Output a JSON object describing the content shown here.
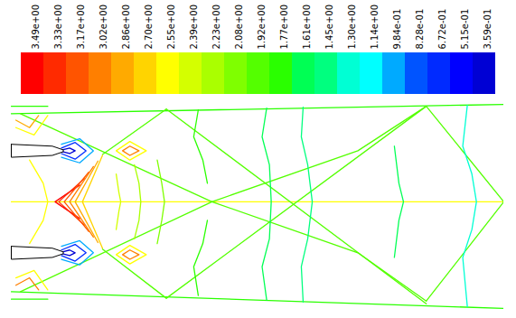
{
  "chart_data": {
    "type": "contour",
    "xlim": [
      0,
      540
    ],
    "ylim": [
      -118,
      108
    ],
    "tick_labels": false,
    "colorbar": {
      "ticks": [
        {
          "value": 3.49,
          "label": "3.49e+00"
        },
        {
          "value": 3.33,
          "label": "3.33e+00"
        },
        {
          "value": 3.17,
          "label": "3.17e+00"
        },
        {
          "value": 3.02,
          "label": "3.02e+00"
        },
        {
          "value": 2.86,
          "label": "2.86e+00"
        },
        {
          "value": 2.7,
          "label": "2.70e+00"
        },
        {
          "value": 2.55,
          "label": "2.55e+00"
        },
        {
          "value": 2.39,
          "label": "2.39e+00"
        },
        {
          "value": 2.23,
          "label": "2.23e+00"
        },
        {
          "value": 2.08,
          "label": "2.08e+00"
        },
        {
          "value": 1.92,
          "label": "1.92e+00"
        },
        {
          "value": 1.77,
          "label": "1.77e+00"
        },
        {
          "value": 1.61,
          "label": "1.61e+00"
        },
        {
          "value": 1.45,
          "label": "1.45e+00"
        },
        {
          "value": 1.3,
          "label": "1.30e+00"
        },
        {
          "value": 1.14,
          "label": "1.14e+00"
        },
        {
          "value": 0.984,
          "label": "9.84e-01"
        },
        {
          "value": 0.828,
          "label": "8.28e-01"
        },
        {
          "value": 0.672,
          "label": "6.72e-01"
        },
        {
          "value": 0.515,
          "label": "5.15e-01"
        },
        {
          "value": 0.359,
          "label": "3.59e-01"
        }
      ],
      "colors": [
        "#ff0000",
        "#ff2a00",
        "#ff5400",
        "#ff7f00",
        "#ffaa00",
        "#ffd400",
        "#ffff00",
        "#d4ff00",
        "#aaff00",
        "#7fff00",
        "#54ff00",
        "#2aff00",
        "#00ff54",
        "#00ff7f",
        "#00ffd4",
        "#00ffff",
        "#00aaff",
        "#0054ff",
        "#002aff",
        "#0000ff",
        "#0000d4"
      ]
    },
    "contours": [
      {
        "level": 1.77,
        "points": [
          [
            0,
            95
          ],
          [
            540,
            105
          ]
        ]
      },
      {
        "level": 1.77,
        "points": [
          [
            0,
            -97
          ],
          [
            540,
            -115
          ]
        ]
      },
      {
        "level": 1.77,
        "points": [
          [
            0,
            103
          ],
          [
            40,
            103
          ]
        ]
      },
      {
        "level": 1.77,
        "points": [
          [
            0,
            -105
          ],
          [
            40,
            -105
          ]
        ]
      },
      {
        "level": 2.55,
        "points": [
          [
            0,
            0
          ],
          [
            540,
            0
          ]
        ]
      },
      {
        "level": 1.92,
        "points": [
          [
            10,
            95
          ],
          [
            220,
            0
          ]
        ]
      },
      {
        "level": 1.92,
        "points": [
          [
            10,
            -97
          ],
          [
            220,
            0
          ]
        ]
      },
      {
        "level": 1.92,
        "points": [
          [
            100,
            51
          ],
          [
            170,
            100
          ]
        ]
      },
      {
        "level": 1.92,
        "points": [
          [
            100,
            -51
          ],
          [
            170,
            -104
          ]
        ]
      },
      {
        "level": 1.92,
        "points": [
          [
            220,
            0
          ],
          [
            380,
            55
          ],
          [
            455,
            103
          ]
        ]
      },
      {
        "level": 1.92,
        "points": [
          [
            220,
            0
          ],
          [
            380,
            -55
          ],
          [
            455,
            -107
          ]
        ]
      },
      {
        "level": 1.92,
        "points": [
          [
            170,
            100
          ],
          [
            455,
            -110
          ]
        ]
      },
      {
        "level": 1.92,
        "points": [
          [
            170,
            -104
          ],
          [
            455,
            103
          ]
        ]
      },
      {
        "level": 1.92,
        "points": [
          [
            455,
            103
          ],
          [
            540,
            0
          ]
        ]
      },
      {
        "level": 1.92,
        "points": [
          [
            455,
            -107
          ],
          [
            540,
            0
          ]
        ]
      },
      {
        "level": 1.77,
        "points": [
          [
            205,
            99
          ],
          [
            200,
            70
          ],
          [
            210,
            45
          ],
          [
            215,
            20
          ]
        ]
      },
      {
        "level": 1.77,
        "points": [
          [
            205,
            -101
          ],
          [
            200,
            -70
          ],
          [
            210,
            -45
          ],
          [
            215,
            -20
          ]
        ]
      },
      {
        "level": 1.61,
        "points": [
          [
            280,
            101
          ],
          [
            275,
            70
          ],
          [
            283,
            40
          ],
          [
            285,
            0
          ],
          [
            283,
            -40
          ],
          [
            275,
            -70
          ],
          [
            280,
            -106
          ]
        ]
      },
      {
        "level": 1.45,
        "points": [
          [
            320,
            102
          ],
          [
            318,
            70
          ],
          [
            325,
            40
          ],
          [
            330,
            0
          ],
          [
            325,
            -40
          ],
          [
            318,
            -70
          ],
          [
            320,
            -108
          ]
        ]
      },
      {
        "level": 1.61,
        "points": [
          [
            420,
            60
          ],
          [
            425,
            20
          ],
          [
            430,
            0
          ],
          [
            425,
            -20
          ],
          [
            420,
            -60
          ]
        ]
      },
      {
        "level": 1.3,
        "points": [
          [
            500,
            104
          ],
          [
            495,
            60
          ],
          [
            505,
            30
          ],
          [
            510,
            0
          ],
          [
            505,
            -30
          ],
          [
            495,
            -60
          ],
          [
            500,
            -113
          ]
        ]
      },
      {
        "level": 2.08,
        "points": [
          [
            160,
            45
          ],
          [
            165,
            20
          ],
          [
            168,
            0
          ],
          [
            165,
            -20
          ],
          [
            160,
            -45
          ]
        ]
      },
      {
        "level": 2.23,
        "points": [
          [
            135,
            40
          ],
          [
            140,
            20
          ],
          [
            142,
            0
          ],
          [
            140,
            -20
          ],
          [
            135,
            -40
          ]
        ]
      },
      {
        "level": 2.39,
        "points": [
          [
            115,
            30
          ],
          [
            118,
            10
          ],
          [
            120,
            0
          ],
          [
            118,
            -10
          ],
          [
            115,
            -30
          ]
        ]
      },
      {
        "level": 3.49,
        "points": [
          [
            75,
            18
          ],
          [
            48,
            0
          ],
          [
            75,
            -18
          ]
        ]
      },
      {
        "level": 3.33,
        "points": [
          [
            80,
            25
          ],
          [
            52,
            0
          ],
          [
            80,
            -25
          ]
        ]
      },
      {
        "level": 3.17,
        "points": [
          [
            85,
            32
          ],
          [
            58,
            0
          ],
          [
            85,
            -32
          ]
        ]
      },
      {
        "level": 3.02,
        "points": [
          [
            90,
            38
          ],
          [
            64,
            0
          ],
          [
            90,
            -38
          ]
        ]
      },
      {
        "level": 2.86,
        "points": [
          [
            95,
            44
          ],
          [
            70,
            0
          ],
          [
            95,
            -44
          ]
        ]
      },
      {
        "level": 2.7,
        "points": [
          [
            100,
            50
          ],
          [
            78,
            0
          ],
          [
            100,
            -50
          ]
        ]
      },
      {
        "level": 2.55,
        "points": [
          [
            20,
            45
          ],
          [
            35,
            20
          ],
          [
            40,
            0
          ],
          [
            35,
            -20
          ],
          [
            20,
            -45
          ]
        ]
      },
      {
        "level": 0.984,
        "points": [
          [
            55,
            62
          ],
          [
            75,
            68
          ],
          [
            90,
            55
          ],
          [
            75,
            42
          ],
          [
            55,
            48
          ]
        ]
      },
      {
        "level": 0.672,
        "points": [
          [
            55,
            58
          ],
          [
            70,
            64
          ],
          [
            82,
            55
          ],
          [
            70,
            46
          ],
          [
            55,
            52
          ]
        ]
      },
      {
        "level": 0.359,
        "points": [
          [
            56,
            56
          ],
          [
            64,
            58
          ],
          [
            70,
            55
          ],
          [
            64,
            52
          ],
          [
            56,
            54
          ]
        ]
      },
      {
        "level": 0.984,
        "points": [
          [
            55,
            -48
          ],
          [
            75,
            -42
          ],
          [
            90,
            -55
          ],
          [
            75,
            -68
          ],
          [
            55,
            -62
          ]
        ]
      },
      {
        "level": 0.672,
        "points": [
          [
            55,
            -52
          ],
          [
            70,
            -46
          ],
          [
            82,
            -55
          ],
          [
            70,
            -64
          ],
          [
            55,
            -58
          ]
        ]
      },
      {
        "level": 0.359,
        "points": [
          [
            56,
            -54
          ],
          [
            64,
            -52
          ],
          [
            70,
            -55
          ],
          [
            64,
            -58
          ],
          [
            56,
            -56
          ]
        ]
      },
      {
        "level": 3.02,
        "points": [
          [
            122,
            55
          ],
          [
            130,
            60
          ],
          [
            140,
            55
          ],
          [
            130,
            50
          ],
          [
            122,
            55
          ]
        ]
      },
      {
        "level": 2.55,
        "points": [
          [
            115,
            55
          ],
          [
            130,
            65
          ],
          [
            148,
            55
          ],
          [
            130,
            45
          ],
          [
            115,
            55
          ]
        ]
      },
      {
        "level": 3.02,
        "points": [
          [
            122,
            -57
          ],
          [
            130,
            -52
          ],
          [
            140,
            -57
          ],
          [
            130,
            -62
          ],
          [
            122,
            -57
          ]
        ]
      },
      {
        "level": 2.55,
        "points": [
          [
            115,
            -57
          ],
          [
            130,
            -47
          ],
          [
            148,
            -57
          ],
          [
            130,
            -67
          ],
          [
            115,
            -57
          ]
        ]
      },
      {
        "level": 2.86,
        "points": [
          [
            5,
            88
          ],
          [
            20,
            80
          ],
          [
            30,
            93
          ]
        ]
      },
      {
        "level": 2.55,
        "points": [
          [
            5,
            80
          ],
          [
            25,
            72
          ],
          [
            40,
            93
          ]
        ]
      },
      {
        "level": 3.02,
        "points": [
          [
            5,
            -90
          ],
          [
            20,
            -82
          ],
          [
            30,
            -95
          ]
        ]
      },
      {
        "level": 2.55,
        "points": [
          [
            5,
            -82
          ],
          [
            25,
            -74
          ],
          [
            40,
            -95
          ]
        ]
      }
    ],
    "bodies": [
      {
        "points": [
          [
            0,
            62
          ],
          [
            45,
            60
          ],
          [
            57,
            56
          ],
          [
            57,
            54
          ],
          [
            45,
            50
          ],
          [
            0,
            48
          ],
          [
            0,
            62
          ]
        ]
      },
      {
        "points": [
          [
            0,
            -48
          ],
          [
            45,
            -50
          ],
          [
            57,
            -54
          ],
          [
            57,
            -56
          ],
          [
            45,
            -60
          ],
          [
            0,
            -62
          ],
          [
            0,
            -48
          ]
        ]
      }
    ]
  }
}
